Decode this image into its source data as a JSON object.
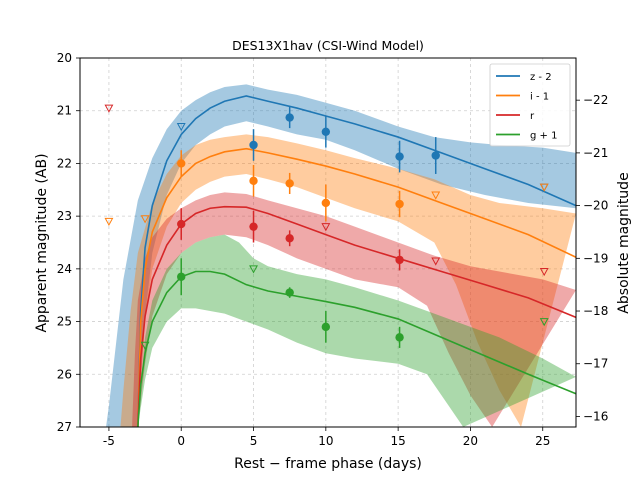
{
  "chart_data": {
    "type": "line",
    "title": "DES13X1hav (CSI-Wind Model)",
    "xlabel": "Rest − frame phase (days)",
    "ylabel": "Apparent magnitude (AB)",
    "y2label": "Absolute magnitude",
    "xlim": [
      -7,
      27.3
    ],
    "ylim": [
      27,
      20
    ],
    "y2lim": [
      -15.8,
      -22.8
    ],
    "xticks": [
      -5,
      0,
      5,
      10,
      15,
      20,
      25
    ],
    "yticks": [
      20,
      21,
      22,
      23,
      24,
      25,
      26,
      27
    ],
    "y2ticks": [
      -16,
      -17,
      -18,
      -19,
      -20,
      -21,
      -22
    ],
    "grid": true,
    "legend_position": "top-right",
    "series": [
      {
        "name": "z - 2",
        "color": "#1f77b4",
        "model": [
          [
            -3.0,
            27.0
          ],
          [
            -2.8,
            24.8
          ],
          [
            -2.5,
            23.6
          ],
          [
            -2,
            22.8
          ],
          [
            -1,
            21.95
          ],
          [
            0,
            21.45
          ],
          [
            1,
            21.15
          ],
          [
            2,
            20.95
          ],
          [
            3,
            20.82
          ],
          [
            4.5,
            20.72
          ],
          [
            6,
            20.82
          ],
          [
            8,
            20.95
          ],
          [
            10,
            21.1
          ],
          [
            12,
            21.25
          ],
          [
            15,
            21.5
          ],
          [
            18,
            21.8
          ],
          [
            21,
            22.1
          ],
          [
            24,
            22.4
          ],
          [
            27.3,
            22.8
          ]
        ],
        "band_upper": [
          [
            -5.2,
            27.0
          ],
          [
            -5,
            26.6
          ],
          [
            -4,
            24.2
          ],
          [
            -3,
            22.7
          ],
          [
            -2,
            21.9
          ],
          [
            -1,
            21.35
          ],
          [
            0,
            21.0
          ],
          [
            1,
            20.8
          ],
          [
            2,
            20.65
          ],
          [
            3,
            20.55
          ],
          [
            4.5,
            20.5
          ],
          [
            6,
            20.6
          ],
          [
            8,
            20.7
          ],
          [
            10,
            20.85
          ],
          [
            12,
            21.0
          ],
          [
            15,
            21.3
          ],
          [
            17.5,
            21.5
          ],
          [
            20,
            21.6
          ],
          [
            22,
            21.65
          ],
          [
            25,
            21.7
          ],
          [
            27.3,
            21.8
          ]
        ],
        "band_lower": [
          [
            -3.0,
            27.0
          ],
          [
            -2.5,
            24.9
          ],
          [
            -2,
            23.7
          ],
          [
            -1,
            22.6
          ],
          [
            0,
            22.0
          ],
          [
            1,
            21.65
          ],
          [
            2,
            21.45
          ],
          [
            3,
            21.3
          ],
          [
            4.5,
            21.2
          ],
          [
            6,
            21.3
          ],
          [
            8,
            21.45
          ],
          [
            10,
            21.55
          ],
          [
            12,
            21.75
          ],
          [
            15,
            22.1
          ],
          [
            18,
            22.4
          ],
          [
            21,
            22.6
          ],
          [
            24,
            22.75
          ],
          [
            27.3,
            22.85
          ]
        ],
        "detections": [
          [
            5,
            21.65,
            0.3
          ],
          [
            7.5,
            21.13,
            0.2
          ],
          [
            10,
            21.4,
            0.3
          ],
          [
            15.1,
            21.87,
            0.3
          ],
          [
            17.6,
            21.85,
            0.35
          ]
        ],
        "upper_limits": [
          [
            0,
            21.3
          ],
          [
            25.1,
            22.45
          ]
        ]
      },
      {
        "name": "i - 1",
        "color": "#ff7f0e",
        "model": [
          [
            -3.0,
            27.0
          ],
          [
            -2.8,
            25.0
          ],
          [
            -2.5,
            24.0
          ],
          [
            -2,
            23.3
          ],
          [
            -1,
            22.65
          ],
          [
            0,
            22.25
          ],
          [
            1,
            22.0
          ],
          [
            2,
            21.87
          ],
          [
            3,
            21.78
          ],
          [
            4.5,
            21.72
          ],
          [
            6,
            21.8
          ],
          [
            8,
            21.92
          ],
          [
            10,
            22.05
          ],
          [
            12,
            22.2
          ],
          [
            15,
            22.45
          ],
          [
            18,
            22.75
          ],
          [
            21,
            23.05
          ],
          [
            24,
            23.35
          ],
          [
            27.3,
            23.78
          ]
        ],
        "band_upper": [
          [
            -4.2,
            27.0
          ],
          [
            -4,
            26.3
          ],
          [
            -3.5,
            24.8
          ],
          [
            -3,
            23.7
          ],
          [
            -2,
            22.75
          ],
          [
            -1,
            22.2
          ],
          [
            0,
            21.85
          ],
          [
            1,
            21.65
          ],
          [
            2,
            21.55
          ],
          [
            3,
            21.5
          ],
          [
            4.5,
            21.45
          ],
          [
            6,
            21.5
          ],
          [
            8,
            21.62
          ],
          [
            10,
            21.75
          ],
          [
            12,
            21.9
          ],
          [
            15,
            22.1
          ],
          [
            17.5,
            22.3
          ],
          [
            20,
            22.6
          ],
          [
            22,
            22.75
          ],
          [
            25,
            22.85
          ],
          [
            27.3,
            22.95
          ]
        ],
        "band_lower": [
          [
            -3.0,
            27.0
          ],
          [
            -2.5,
            25.0
          ],
          [
            -2,
            24.0
          ],
          [
            -1,
            23.2
          ],
          [
            0,
            22.75
          ],
          [
            1,
            22.5
          ],
          [
            2,
            22.35
          ],
          [
            3,
            22.25
          ],
          [
            4.5,
            22.2
          ],
          [
            6,
            22.3
          ],
          [
            8,
            22.45
          ],
          [
            10,
            22.65
          ],
          [
            12,
            22.85
          ],
          [
            15,
            23.1
          ],
          [
            17.5,
            23.5
          ],
          [
            19,
            24.3
          ],
          [
            20.5,
            25.4
          ],
          [
            22,
            26.3
          ],
          [
            23.5,
            27.0
          ]
        ],
        "detections": [
          [
            0,
            22.0,
            0.25
          ],
          [
            5,
            22.33,
            0.3
          ],
          [
            7.5,
            22.38,
            0.2
          ],
          [
            10,
            22.75,
            0.35
          ],
          [
            15.1,
            22.77,
            0.25
          ]
        ],
        "upper_limits": [
          [
            -5,
            23.1
          ],
          [
            -2.5,
            23.05
          ],
          [
            17.6,
            22.6
          ],
          [
            25.1,
            22.45
          ]
        ]
      },
      {
        "name": "r",
        "color": "#d62728",
        "model": [
          [
            -3.0,
            27.0
          ],
          [
            -2.8,
            25.7
          ],
          [
            -2.5,
            24.9
          ],
          [
            -2,
            24.2
          ],
          [
            -1,
            23.55
          ],
          [
            0,
            23.15
          ],
          [
            1,
            22.95
          ],
          [
            2,
            22.85
          ],
          [
            3,
            22.82
          ],
          [
            4.5,
            22.83
          ],
          [
            6,
            22.95
          ],
          [
            8,
            23.15
          ],
          [
            10,
            23.35
          ],
          [
            12,
            23.55
          ],
          [
            15,
            23.8
          ],
          [
            18,
            24.05
          ],
          [
            21,
            24.3
          ],
          [
            24,
            24.55
          ],
          [
            27.3,
            24.92
          ]
        ],
        "band_upper": [
          [
            -3.4,
            27.0
          ],
          [
            -3.2,
            25.6
          ],
          [
            -3,
            24.6
          ],
          [
            -2.5,
            23.8
          ],
          [
            -2,
            23.4
          ],
          [
            -1,
            23.05
          ],
          [
            0,
            22.85
          ],
          [
            1,
            22.7
          ],
          [
            2,
            22.6
          ],
          [
            3,
            22.55
          ],
          [
            4.5,
            22.58
          ],
          [
            6,
            22.7
          ],
          [
            8,
            22.85
          ],
          [
            10,
            23.0
          ],
          [
            12,
            23.2
          ],
          [
            15,
            23.5
          ],
          [
            17.5,
            23.75
          ],
          [
            20,
            23.95
          ],
          [
            22,
            24.05
          ],
          [
            25,
            24.2
          ],
          [
            27.3,
            24.4
          ]
        ],
        "band_lower": [
          [
            -3.0,
            27.0
          ],
          [
            -2.5,
            25.8
          ],
          [
            -2,
            24.9
          ],
          [
            -1,
            24.1
          ],
          [
            0,
            23.7
          ],
          [
            1,
            23.5
          ],
          [
            2,
            23.4
          ],
          [
            3,
            23.35
          ],
          [
            4.5,
            23.4
          ],
          [
            6,
            23.55
          ],
          [
            8,
            23.8
          ],
          [
            10,
            24.0
          ],
          [
            12,
            24.2
          ],
          [
            15,
            24.35
          ],
          [
            17,
            24.7
          ],
          [
            18.5,
            25.6
          ],
          [
            20,
            26.4
          ],
          [
            21.5,
            27.0
          ]
        ],
        "detections": [
          [
            0,
            23.15,
            0.3
          ],
          [
            5,
            23.2,
            0.3
          ],
          [
            7.5,
            23.42,
            0.15
          ],
          [
            15.1,
            23.83,
            0.2
          ]
        ],
        "upper_limits": [
          [
            -5,
            20.95
          ],
          [
            10,
            23.2
          ],
          [
            17.6,
            23.85
          ],
          [
            25.1,
            24.05
          ]
        ]
      },
      {
        "name": "g + 1",
        "color": "#2ca02c",
        "model": [
          [
            -3.0,
            27.0
          ],
          [
            -2.8,
            26.2
          ],
          [
            -2.5,
            25.6
          ],
          [
            -2,
            25.0
          ],
          [
            -1,
            24.45
          ],
          [
            0,
            24.15
          ],
          [
            1,
            24.05
          ],
          [
            2,
            24.05
          ],
          [
            3,
            24.1
          ],
          [
            4.5,
            24.3
          ],
          [
            6,
            24.42
          ],
          [
            8,
            24.52
          ],
          [
            10,
            24.62
          ],
          [
            12,
            24.73
          ],
          [
            15,
            24.95
          ],
          [
            18,
            25.3
          ],
          [
            21,
            25.65
          ],
          [
            24,
            26.0
          ],
          [
            27.3,
            26.37
          ]
        ],
        "band_upper": [
          [
            -3.0,
            27.0
          ],
          [
            -2.8,
            26.2
          ],
          [
            -2.5,
            25.3
          ],
          [
            -2,
            24.6
          ],
          [
            -1,
            24.0
          ],
          [
            0,
            23.7
          ],
          [
            1,
            23.5
          ],
          [
            2,
            23.4
          ],
          [
            3,
            23.35
          ],
          [
            4,
            23.5
          ],
          [
            5,
            23.8
          ],
          [
            6,
            23.95
          ],
          [
            8,
            24.1
          ],
          [
            10,
            24.2
          ],
          [
            12,
            24.35
          ],
          [
            15,
            24.6
          ],
          [
            17.5,
            24.85
          ],
          [
            20,
            25.1
          ],
          [
            22,
            25.3
          ],
          [
            25,
            25.7
          ],
          [
            27.3,
            26.05
          ]
        ],
        "band_lower": [
          [
            -3.0,
            27.0
          ],
          [
            -2.5,
            26.1
          ],
          [
            -2,
            25.5
          ],
          [
            -1,
            25.0
          ],
          [
            0,
            24.75
          ],
          [
            1,
            24.75
          ],
          [
            2,
            24.8
          ],
          [
            3,
            24.85
          ],
          [
            4.5,
            25.0
          ],
          [
            6,
            25.15
          ],
          [
            8,
            25.4
          ],
          [
            10,
            25.6
          ],
          [
            12,
            25.7
          ],
          [
            15,
            25.8
          ],
          [
            17,
            26.0
          ],
          [
            18.5,
            26.6
          ],
          [
            19.5,
            27.0
          ]
        ],
        "detections": [
          [
            0,
            24.15,
            0.35
          ],
          [
            7.5,
            24.45,
            0.1
          ],
          [
            10,
            25.1,
            0.3
          ],
          [
            15.1,
            25.3,
            0.2
          ]
        ],
        "upper_limits": [
          [
            -2.5,
            25.45
          ],
          [
            5,
            24.0
          ],
          [
            25.1,
            25.0
          ]
        ]
      }
    ]
  }
}
